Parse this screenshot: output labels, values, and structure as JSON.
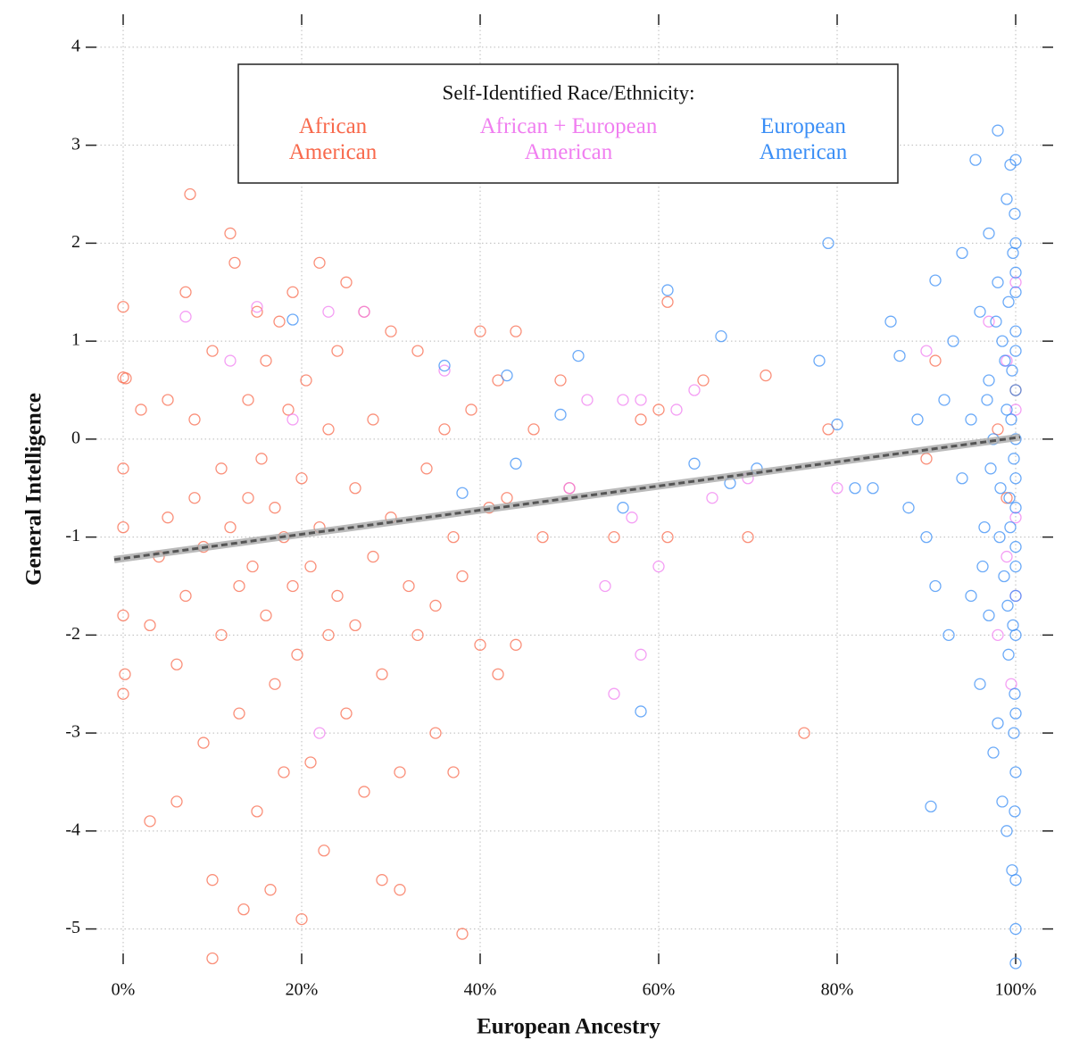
{
  "chart_data": {
    "type": "scatter",
    "x_label": "European Ancestry",
    "y_label": "General Intelligence",
    "legend_title": "Self-Identified Race/Ethnicity:",
    "legend": "top",
    "grid": true,
    "xlim": [
      -3,
      103
    ],
    "ylim": [
      -5.25,
      4.3
    ],
    "xticks": [
      {
        "value": 0,
        "label": "0%"
      },
      {
        "value": 20,
        "label": "20%"
      },
      {
        "value": 40,
        "label": "40%"
      },
      {
        "value": 60,
        "label": "60%"
      },
      {
        "value": 80,
        "label": "80%"
      },
      {
        "value": 100,
        "label": "100%"
      }
    ],
    "yticks": [
      -5,
      -4,
      -3,
      -2,
      -1,
      0,
      1,
      2,
      3,
      4
    ],
    "series": [
      {
        "name": "African American",
        "color": "#f8694c",
        "x": [
          0,
          0,
          0.3,
          0,
          0,
          0,
          0,
          0.2,
          2,
          3,
          3,
          4,
          5,
          5,
          6,
          6,
          7,
          7,
          7.5,
          8,
          8,
          9,
          9,
          10,
          10,
          10,
          11,
          11,
          12,
          12,
          12.5,
          13,
          13,
          13.5,
          14,
          14,
          14.5,
          15,
          15,
          15.5,
          16,
          16,
          16.5,
          17,
          17,
          17.5,
          18,
          18,
          18.5,
          19,
          19,
          19.5,
          20,
          20,
          20.5,
          21,
          21,
          22,
          22,
          22.5,
          23,
          23,
          24,
          24,
          25,
          25,
          26,
          26,
          27,
          27,
          28,
          28,
          29,
          29,
          30,
          30,
          31,
          31,
          32,
          33,
          33,
          34,
          35,
          35,
          36,
          37,
          37,
          38,
          38,
          39,
          40,
          40,
          41,
          42,
          42,
          43,
          44,
          44,
          46,
          47,
          49,
          50,
          55,
          58,
          60,
          61,
          61,
          65,
          70,
          72,
          76.3,
          79,
          90,
          91,
          98,
          99,
          100
        ],
        "values": [
          1.35,
          0.63,
          0.62,
          -0.3,
          -0.9,
          -1.8,
          -2.6,
          -2.4,
          0.3,
          -1.9,
          -3.9,
          -1.2,
          0.4,
          -0.8,
          -2.3,
          -3.7,
          1.5,
          -1.6,
          2.5,
          0.2,
          -0.6,
          -1.1,
          -3.1,
          -5.3,
          -4.5,
          0.9,
          -0.3,
          -2.0,
          2.1,
          -0.9,
          1.8,
          -1.5,
          -2.8,
          -4.8,
          0.4,
          -0.6,
          -1.3,
          1.3,
          -3.8,
          -0.2,
          -1.8,
          0.8,
          -4.6,
          -0.7,
          -2.5,
          1.2,
          -1.0,
          -3.4,
          0.3,
          1.5,
          -1.5,
          -2.2,
          -4.9,
          -0.4,
          0.6,
          -1.3,
          -3.3,
          1.8,
          -0.9,
          -4.2,
          -2.0,
          0.1,
          -1.6,
          0.9,
          -2.8,
          1.6,
          -0.5,
          -1.9,
          1.3,
          -3.6,
          0.2,
          -1.2,
          -2.4,
          -4.5,
          1.1,
          -0.8,
          -3.4,
          -4.6,
          -1.5,
          0.9,
          -2.0,
          -0.3,
          -1.7,
          -3.0,
          0.1,
          -1.0,
          -3.4,
          -5.05,
          -1.4,
          0.3,
          1.1,
          -2.1,
          -0.7,
          0.6,
          -2.4,
          -0.6,
          1.1,
          -2.1,
          0.1,
          -1.0,
          0.6,
          -0.5,
          -1.0,
          0.2,
          0.3,
          1.4,
          -1.0,
          0.6,
          -1.0,
          0.65,
          -3.0,
          0.1,
          -0.2,
          0.8,
          0.1,
          -0.6,
          0.5
        ]
      },
      {
        "name": "African + European American",
        "color": "#f07ef0",
        "x": [
          7,
          12,
          15,
          19,
          22,
          23,
          27,
          36,
          50,
          52,
          54,
          55,
          56,
          57,
          58,
          58,
          60,
          62,
          64,
          66,
          70,
          80,
          90,
          97,
          98,
          99,
          100,
          100,
          100,
          100,
          99.5,
          99
        ],
        "values": [
          1.25,
          0.8,
          1.35,
          0.2,
          -3.0,
          1.3,
          1.3,
          0.7,
          -0.5,
          0.4,
          -1.5,
          -2.6,
          0.4,
          -0.8,
          -2.2,
          0.4,
          -1.3,
          0.3,
          0.5,
          -0.6,
          -0.4,
          -0.5,
          0.9,
          1.2,
          -2.0,
          0.8,
          1.6,
          -0.8,
          -1.6,
          0.3,
          -2.5,
          -1.2
        ]
      },
      {
        "name": "European American",
        "color": "#3a8ef6",
        "x": [
          19,
          36,
          38,
          43,
          44,
          49,
          51,
          56,
          58,
          61,
          64,
          67,
          68,
          71,
          78,
          79,
          80,
          82,
          84,
          86,
          87,
          88,
          89,
          90,
          90.5,
          91,
          91,
          92,
          92.5,
          93,
          94,
          94,
          95,
          95,
          95.5,
          96,
          96,
          96.5,
          97,
          97,
          97,
          97.5,
          97.5,
          98,
          98,
          98,
          98.3,
          98.5,
          98.5,
          98.7,
          99,
          99,
          99,
          99.2,
          99.2,
          99.4,
          99.4,
          99.6,
          99.6,
          99.7,
          99.7,
          99.8,
          99.8,
          99.9,
          99.9,
          100,
          100,
          100,
          100,
          100,
          100,
          100,
          100,
          100,
          100,
          100,
          100,
          100,
          100,
          100,
          100,
          100,
          100,
          100,
          99.5,
          99.3,
          98.8,
          98.2,
          97.8,
          97.2,
          96.8,
          96.3,
          99.1,
          99.9
        ],
        "values": [
          1.22,
          0.75,
          -0.55,
          0.65,
          -0.25,
          0.25,
          0.85,
          -0.7,
          -2.78,
          1.52,
          -0.25,
          1.05,
          -0.45,
          -0.3,
          0.8,
          2.0,
          0.15,
          -0.5,
          -0.5,
          1.2,
          0.85,
          -0.7,
          0.2,
          -1.0,
          -3.75,
          1.62,
          -1.5,
          0.4,
          -2.0,
          1.0,
          -0.4,
          1.9,
          -1.6,
          0.2,
          2.85,
          -2.5,
          1.3,
          -0.9,
          0.6,
          -1.8,
          2.1,
          -3.2,
          0.0,
          1.6,
          -2.9,
          3.15,
          -0.5,
          1.0,
          -3.7,
          -1.4,
          2.45,
          -4.0,
          0.3,
          -2.2,
          1.4,
          -0.9,
          2.8,
          -4.4,
          0.7,
          -1.9,
          1.9,
          -3.0,
          -0.2,
          2.3,
          -2.6,
          -5.0,
          -5.35,
          2.85,
          1.1,
          -1.1,
          0.0,
          -0.4,
          0.5,
          -1.6,
          -2.0,
          1.5,
          -2.8,
          -3.4,
          -4.5,
          2.0,
          0.9,
          -0.7,
          -1.3,
          1.7,
          0.2,
          -0.6,
          0.8,
          -1.0,
          1.2,
          -0.3,
          0.4,
          -1.3,
          -1.7,
          -3.8
        ]
      }
    ],
    "trend": {
      "color": "#555555",
      "x": [
        -1,
        100.5
      ],
      "values": [
        -1.23,
        0.02
      ]
    }
  }
}
